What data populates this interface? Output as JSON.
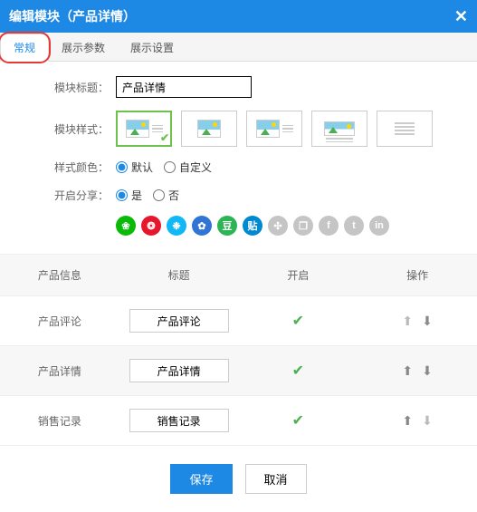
{
  "header": {
    "title": "编辑模块（产品详情）"
  },
  "tabs": [
    {
      "label": "常规",
      "active": true,
      "highlighted": true
    },
    {
      "label": "展示参数",
      "active": false
    },
    {
      "label": "展示设置",
      "active": false
    }
  ],
  "form": {
    "title_label": "模块标题：",
    "title_value": "产品详情",
    "style_label": "模块样式：",
    "color_label": "样式颜色：",
    "color_options": [
      {
        "label": "默认",
        "checked": true
      },
      {
        "label": "自定义",
        "checked": false
      }
    ],
    "share_label": "开启分享：",
    "share_options": [
      {
        "label": "是",
        "checked": true
      },
      {
        "label": "否",
        "checked": false
      }
    ]
  },
  "share_icons": [
    {
      "bg": "#09bb07",
      "text": "❀"
    },
    {
      "bg": "#e6162d",
      "text": "❂"
    },
    {
      "bg": "#12b7f5",
      "text": "❉"
    },
    {
      "bg": "#3074d6",
      "text": "✿"
    },
    {
      "bg": "#2db455",
      "text": "豆"
    },
    {
      "bg": "#0089d0",
      "text": "贴"
    },
    {
      "bg": "#c5c5c5",
      "text": "✣"
    },
    {
      "bg": "#c5c5c5",
      "text": "❐"
    },
    {
      "bg": "#c5c5c5",
      "text": "f"
    },
    {
      "bg": "#c5c5c5",
      "text": "t"
    },
    {
      "bg": "#c5c5c5",
      "text": "in"
    }
  ],
  "table": {
    "headers": [
      "产品信息",
      "标题",
      "开启",
      "操作"
    ],
    "rows": [
      {
        "name": "产品评论",
        "title": "产品评论",
        "enabled": true,
        "up_active": false,
        "down_active": true,
        "alt": false
      },
      {
        "name": "产品详情",
        "title": "产品详情",
        "enabled": true,
        "up_active": true,
        "down_active": true,
        "alt": true
      },
      {
        "name": "销售记录",
        "title": "销售记录",
        "enabled": true,
        "up_active": true,
        "down_active": false,
        "alt": false
      }
    ]
  },
  "footer": {
    "save": "保存",
    "cancel": "取消"
  }
}
